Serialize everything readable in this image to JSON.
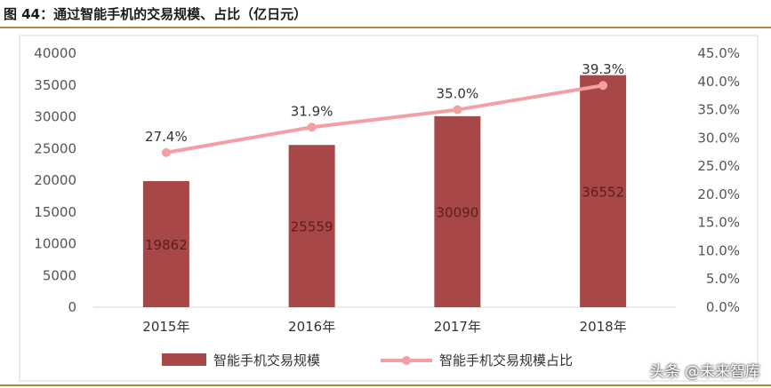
{
  "figure": {
    "title": "图 44：通过智能手机的交易规模、占比（亿日元）",
    "watermark": "头条 @未来智库"
  },
  "colors": {
    "bar": "#a84747",
    "line": "#f2a0a3",
    "rule": "#b08a3e"
  },
  "chart_data": {
    "type": "bar",
    "title": "",
    "categories": [
      "2015年",
      "2016年",
      "2017年",
      "2018年"
    ],
    "series": [
      {
        "name": "智能手机交易规模",
        "type": "bar",
        "axis": "left",
        "values": [
          19862,
          25559,
          30090,
          36552
        ],
        "labels": [
          "19862",
          "25559",
          "30090",
          "36552"
        ]
      },
      {
        "name": "智能手机交易规模占比",
        "type": "line",
        "axis": "right",
        "values": [
          27.4,
          31.9,
          35.0,
          39.3
        ],
        "labels": [
          "27.4%",
          "31.9%",
          "35.0%",
          "39.3%"
        ]
      }
    ],
    "ylim": [
      0,
      40000
    ],
    "y_ticks": [
      "0",
      "5000",
      "10000",
      "15000",
      "20000",
      "25000",
      "30000",
      "35000",
      "40000"
    ],
    "y2lim": [
      0,
      45
    ],
    "y2_ticks": [
      "0.0%",
      "5.0%",
      "10.0%",
      "15.0%",
      "20.0%",
      "25.0%",
      "30.0%",
      "35.0%",
      "40.0%",
      "45.0%"
    ],
    "xlabel": "",
    "ylabel": "",
    "grid": false,
    "legend": "bottom"
  }
}
